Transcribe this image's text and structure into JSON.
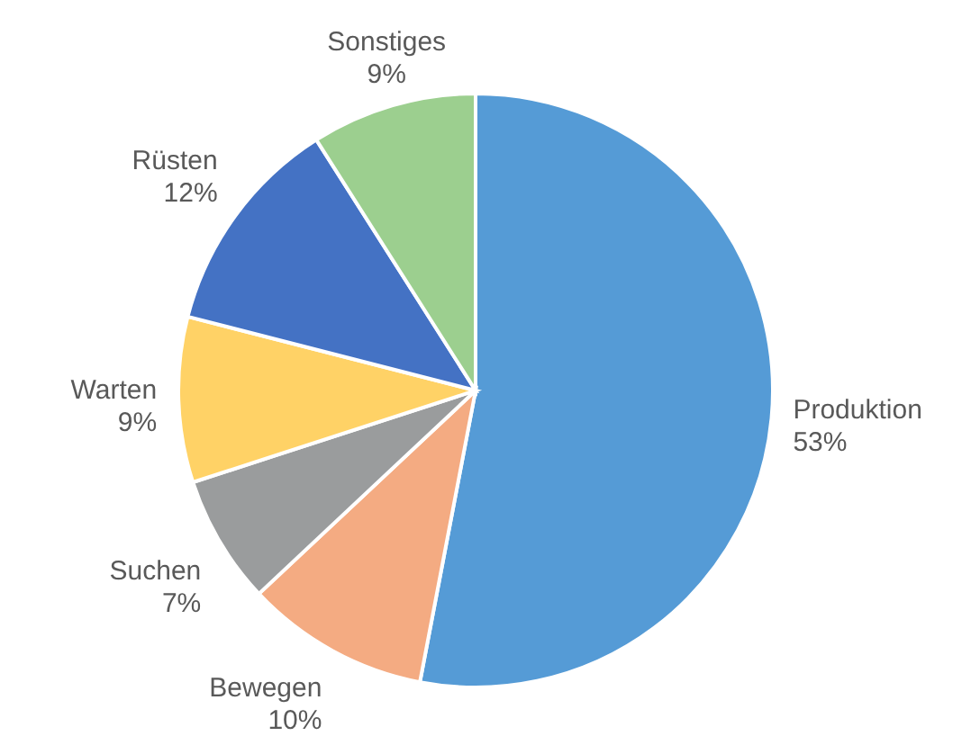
{
  "chart_data": {
    "type": "pie",
    "categories": [
      "Produktion",
      "Bewegen",
      "Suchen",
      "Warten",
      "Rüsten",
      "Sonstiges"
    ],
    "values": [
      53,
      10,
      7,
      9,
      12,
      9
    ],
    "value_labels": [
      "53%",
      "10%",
      "7%",
      "9%",
      "12%",
      "9%"
    ],
    "colors": [
      "#559bd6",
      "#f4ab82",
      "#9a9c9d",
      "#ffd266",
      "#4472c4",
      "#9ccf8f"
    ],
    "legend": false
  }
}
